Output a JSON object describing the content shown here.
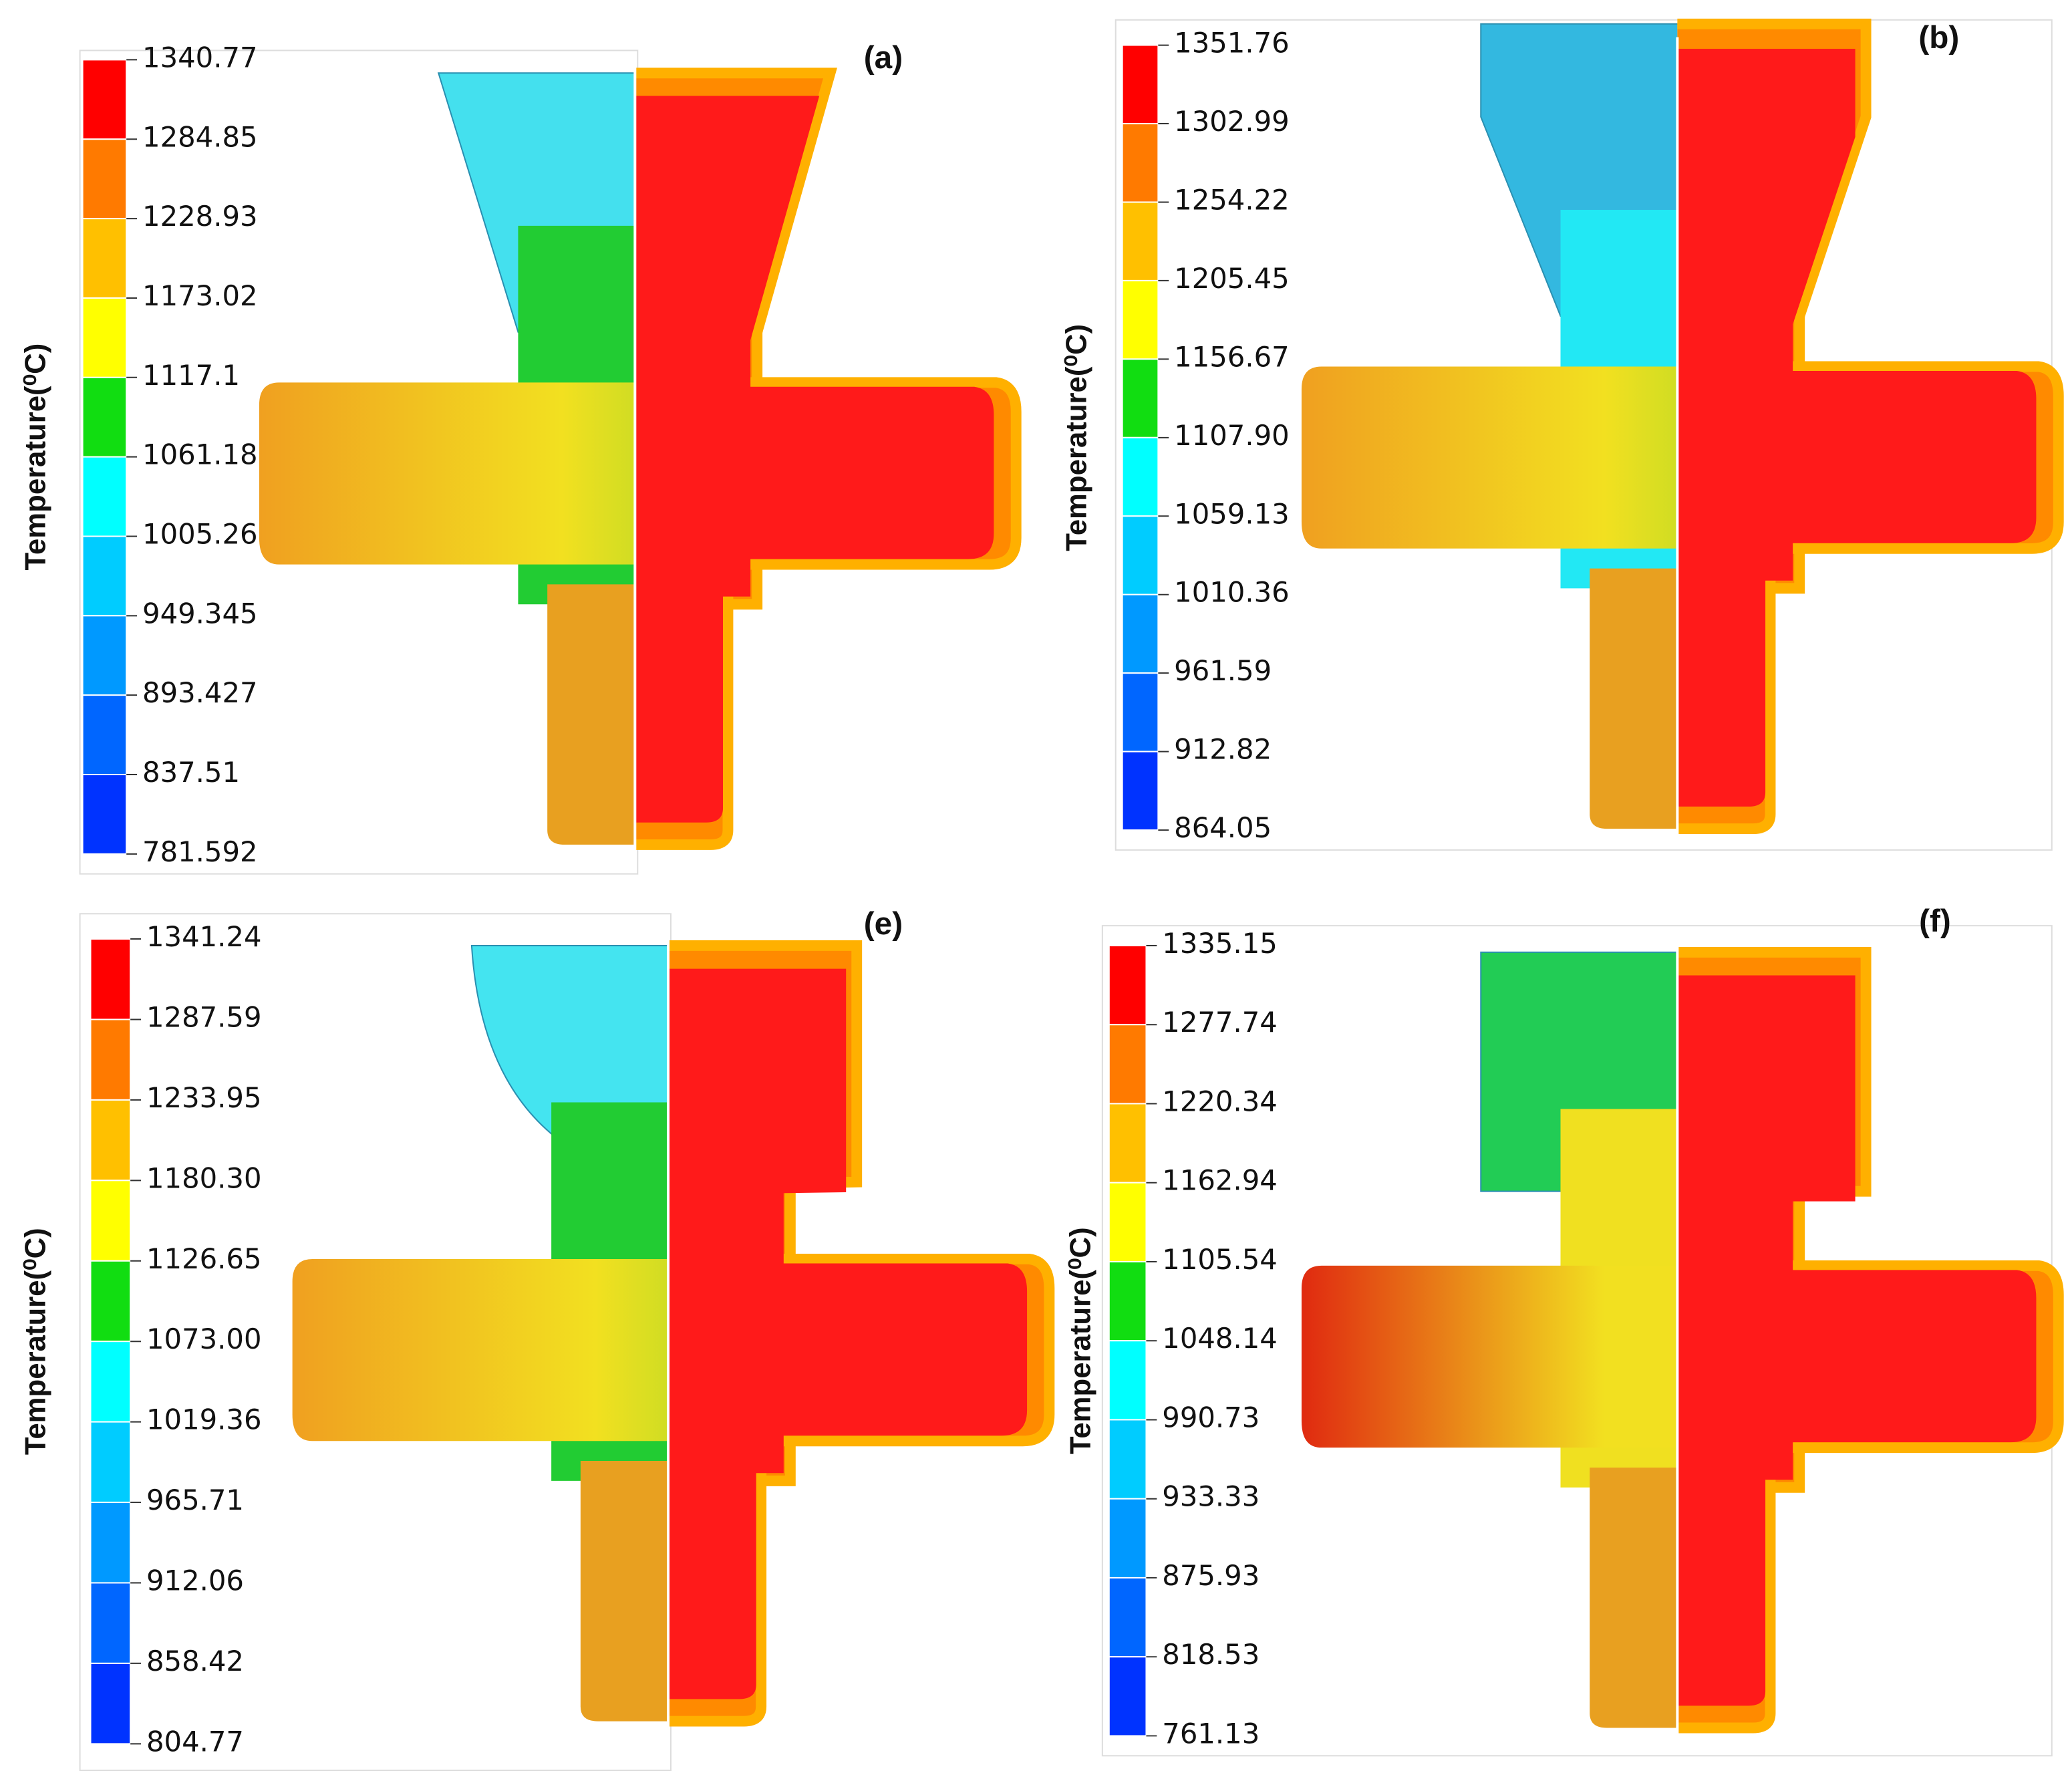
{
  "panels": [
    {
      "label": "(a)",
      "colorbar": {
        "title": "Temperature(⁰C)",
        "ticks": [
          "1340.77",
          "1284.85",
          "1228.93",
          "1173.02",
          "1117.1",
          "1061.18",
          "1005.26",
          "949.345",
          "893.427",
          "837.51",
          "781.592"
        ]
      }
    },
    {
      "label": "(b)",
      "colorbar": {
        "title": "Temperature(⁰C)",
        "ticks": [
          "1351.76",
          "1302.99",
          "1254.22",
          "1205.45",
          "1156.67",
          "1107.90",
          "1059.13",
          "1010.36",
          "961.59",
          "912.82",
          "864.05"
        ]
      }
    },
    {
      "label": "(e)",
      "colorbar": {
        "title": "Temperature(⁰C)",
        "ticks": [
          "1341.24",
          "1287.59",
          "1233.95",
          "1180.30",
          "1126.65",
          "1073.00",
          "1019.36",
          "965.71",
          "912.06",
          "858.42",
          "804.77"
        ]
      }
    },
    {
      "label": "(f)",
      "colorbar": {
        "title": "Temperature(⁰C)",
        "ticks": [
          "1335.15",
          "1277.74",
          "1220.34",
          "1162.94",
          "1105.54",
          "1048.14",
          "990.73",
          "933.33",
          "875.93",
          "818.53",
          "761.13"
        ]
      }
    }
  ]
}
